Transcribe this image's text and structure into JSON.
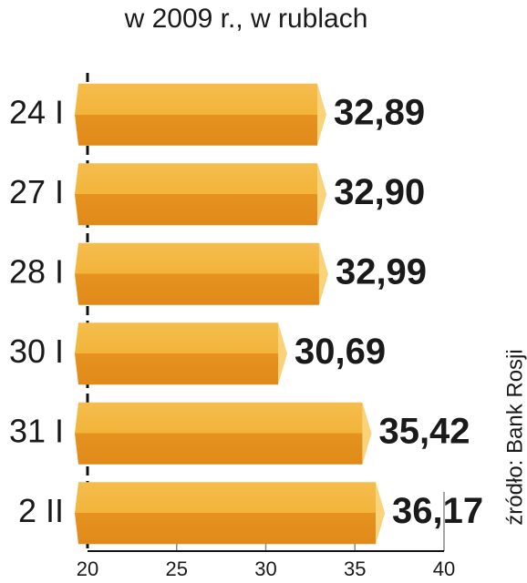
{
  "chart_data": {
    "type": "bar",
    "orientation": "horizontal",
    "title": "w 2009 r., w rublach",
    "source": "źródło: Bank Rosji",
    "categories": [
      "24 I",
      "27 I",
      "28 I",
      "30 I",
      "31 I",
      "2 II"
    ],
    "values": [
      32.89,
      32.9,
      32.99,
      30.69,
      35.42,
      36.17
    ],
    "value_labels": [
      "32,89",
      "32,90",
      "32,99",
      "30,69",
      "35,42",
      "36,17"
    ],
    "color": "#f2b43a",
    "xlim": [
      20,
      40
    ],
    "xticks": [
      20,
      25,
      30,
      35,
      40
    ],
    "grid": true
  }
}
